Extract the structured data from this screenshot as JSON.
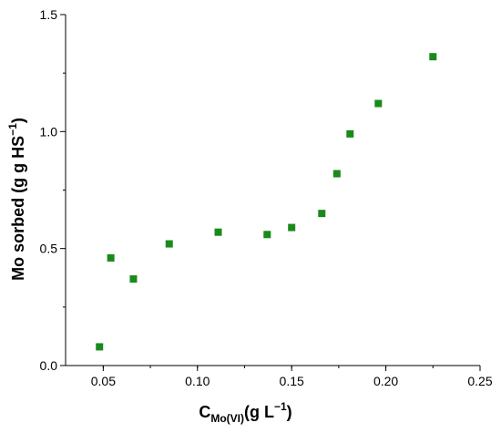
{
  "chart_data": {
    "type": "scatter",
    "xlabel": {
      "main": "C",
      "sub": "Mo(VI)",
      "rest": "(g L",
      "sup": "−1",
      "close": ")"
    },
    "ylabel": {
      "main": "Mo sorbed (g g HS",
      "sup": "−1",
      "close": ")"
    },
    "xlim": [
      0.03,
      0.25
    ],
    "ylim": [
      0.0,
      1.5
    ],
    "xticks": [
      0.05,
      0.1,
      0.15,
      0.2,
      0.25
    ],
    "xtick_labels": [
      "0.05",
      "0.10",
      "0.15",
      "0.20",
      "0.25"
    ],
    "yticks": [
      0.0,
      0.5,
      1.0,
      1.5
    ],
    "ytick_labels": [
      "0.0",
      "0.5",
      "1.0",
      "1.5"
    ],
    "grid": false,
    "marker_color": "#1a8a1a",
    "series": [
      {
        "marker": "square",
        "points": [
          {
            "x": 0.048,
            "y": 0.08
          },
          {
            "x": 0.054,
            "y": 0.46
          },
          {
            "x": 0.066,
            "y": 0.37
          },
          {
            "x": 0.085,
            "y": 0.52
          },
          {
            "x": 0.111,
            "y": 0.57
          },
          {
            "x": 0.137,
            "y": 0.56
          },
          {
            "x": 0.15,
            "y": 0.59
          },
          {
            "x": 0.166,
            "y": 0.65
          },
          {
            "x": 0.174,
            "y": 0.82
          },
          {
            "x": 0.181,
            "y": 0.99
          },
          {
            "x": 0.196,
            "y": 1.12
          },
          {
            "x": 0.225,
            "y": 1.32
          }
        ]
      }
    ]
  }
}
